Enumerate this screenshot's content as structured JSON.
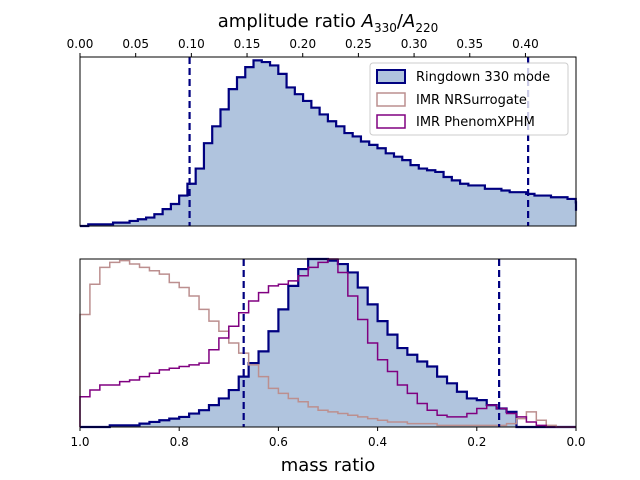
{
  "chart_data": [
    {
      "type": "histogram",
      "title": "amplitude ratio A330/A220",
      "title_parts": {
        "base": "amplitude ratio ",
        "a": "A",
        "sub1": "330",
        "slash": "/",
        "b": "A",
        "sub2": "220"
      },
      "xlim": [
        0.0,
        0.4454
      ],
      "x_axis_position": "top",
      "xticks": [
        "0.00",
        "0.05",
        "0.10",
        "0.15",
        "0.20",
        "0.25",
        "0.30",
        "0.35",
        "0.40"
      ],
      "xtick_values": [
        0.0,
        0.05,
        0.1,
        0.15,
        0.2,
        0.25,
        0.3,
        0.35,
        0.4
      ],
      "ylim": [
        0,
        100
      ],
      "yticks_visible": false,
      "legend": {
        "placement": "top-right",
        "entries": [
          {
            "label": "Ringdown 330 mode",
            "style": "filled",
            "edge": "#000080",
            "fill": "#b0c4de"
          },
          {
            "label": "IMR NRSurrogate",
            "style": "step",
            "edge": "#bc8f8f"
          },
          {
            "label": "IMR PhenomXPHM",
            "style": "step",
            "edge": "#800080"
          }
        ]
      },
      "credible_lines": [
        0.0984,
        0.4024
      ],
      "series": [
        {
          "name": "Ringdown 330 mode",
          "color": "#000080",
          "fill": "#b0c4de",
          "bin_start": 0.0,
          "bin_width": 0.00742,
          "values": [
            0,
            1,
            1,
            1,
            2,
            2,
            3,
            4,
            5,
            7,
            10,
            13,
            18,
            25,
            34,
            49,
            59,
            69,
            81,
            88,
            94,
            98,
            97,
            95,
            90,
            82,
            78,
            74,
            70,
            66,
            62,
            59,
            55,
            53,
            50,
            48,
            46,
            43,
            41,
            39,
            36,
            34,
            33,
            32,
            29,
            27,
            25,
            24,
            24,
            22,
            22,
            21,
            20,
            20,
            19,
            18,
            18,
            17,
            17,
            16,
            14,
            14,
            13,
            13,
            12,
            11,
            11,
            10,
            10,
            9
          ]
        }
      ]
    },
    {
      "type": "histogram",
      "xlabel": "mass ratio",
      "xlim": [
        1.0,
        0.0
      ],
      "xticks": [
        "1.0",
        "0.8",
        "0.6",
        "0.4",
        "0.2",
        "0.0"
      ],
      "xtick_values": [
        1.0,
        0.8,
        0.6,
        0.4,
        0.2,
        0.0
      ],
      "ylim": [
        0,
        100
      ],
      "yticks_visible": false,
      "credible_lines": [
        0.67,
        0.155
      ],
      "series": [
        {
          "name": "Ringdown 330 mode",
          "color": "#000080",
          "fill": "#b0c4de",
          "bin_start": 1.0,
          "bin_width": -0.02,
          "values": [
            0,
            0,
            0,
            1,
            1,
            1,
            2,
            3,
            4,
            5,
            6,
            8,
            10,
            13,
            17,
            22,
            30,
            38,
            45,
            57,
            70,
            84,
            94,
            100,
            100,
            99,
            97,
            92,
            83,
            73,
            63,
            55,
            47,
            43,
            39,
            36,
            30,
            26,
            21,
            17,
            16,
            13,
            11,
            9,
            0,
            0,
            0,
            0,
            0,
            0
          ]
        },
        {
          "name": "IMR NRSurrogate",
          "color": "#bc8f8f",
          "bin_start": 1.0,
          "bin_width": -0.02,
          "values": [
            67,
            85,
            95,
            98,
            99,
            97,
            95,
            93,
            91,
            86,
            83,
            78,
            70,
            63,
            57,
            50,
            44,
            37,
            30,
            23,
            20,
            17,
            15,
            12,
            10,
            9,
            8,
            7,
            6,
            5,
            4,
            3,
            3,
            2,
            2,
            2,
            1,
            1,
            1,
            1,
            1,
            1,
            1,
            2,
            5,
            9,
            4,
            1,
            0,
            0
          ]
        },
        {
          "name": "IMR PhenomXPHM",
          "color": "#800080",
          "bin_start": 1.0,
          "bin_width": -0.02,
          "values": [
            18,
            22,
            25,
            25,
            27,
            28,
            30,
            32,
            34,
            35,
            36,
            37,
            38,
            46,
            53,
            60,
            68,
            75,
            80,
            84,
            85,
            87,
            90,
            95,
            98,
            100,
            92,
            78,
            64,
            50,
            40,
            33,
            25,
            20,
            14,
            10,
            7,
            6,
            6,
            8,
            11,
            13,
            11,
            8,
            6,
            3,
            1,
            0,
            0,
            0
          ]
        }
      ]
    }
  ],
  "labels": {
    "legend_1": "Ringdown 330 mode",
    "legend_2": "IMR NRSurrogate",
    "legend_3": "IMR PhenomXPHM",
    "top_title_base": "amplitude ratio ",
    "top_title_a": "A",
    "top_title_sub1": "330",
    "top_title_slash": "/",
    "top_title_b": "A",
    "top_title_sub2": "220",
    "bottom_xlabel": "mass ratio"
  }
}
